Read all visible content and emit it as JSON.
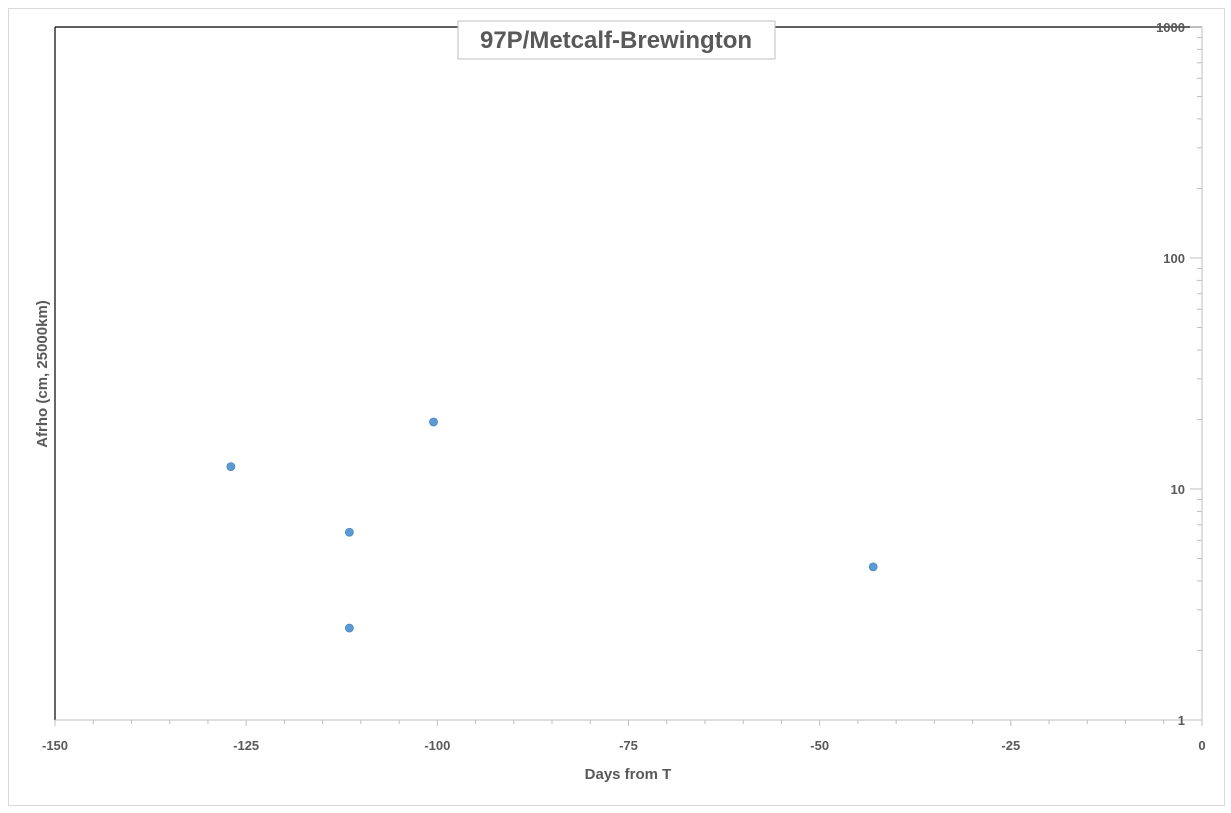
{
  "chart_data": {
    "type": "scatter",
    "title": "97P/Metcalf-Brewington",
    "xlabel": "Days from T",
    "ylabel": "Afrho (cm, 25000km)",
    "xlim": [
      -150,
      0
    ],
    "ylim": [
      1,
      1000
    ],
    "y_scale": "log",
    "x_ticks": [
      -150,
      -125,
      -100,
      -75,
      -50,
      -25,
      0
    ],
    "x_tick_labels": [
      "-150",
      "-125",
      "-100",
      "-75",
      "-50",
      "-25",
      "0"
    ],
    "y_ticks": [
      1,
      10,
      100,
      1000
    ],
    "y_tick_labels": [
      "1",
      "10",
      "100",
      "1000"
    ],
    "y_axis_side": "right",
    "grid": false,
    "legend": "none",
    "series": [
      {
        "color": "#5b9bd5",
        "x": [
          -127,
          -111.5,
          -111.5,
          -100.5,
          -43
        ],
        "y": [
          12.5,
          6.5,
          2.5,
          19.5,
          4.6
        ]
      }
    ]
  }
}
